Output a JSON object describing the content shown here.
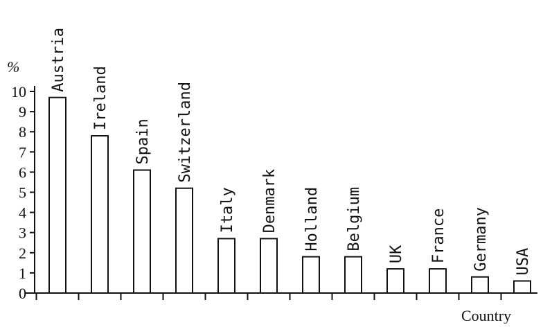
{
  "chart_data": {
    "type": "bar",
    "categories": [
      "Austria",
      "Ireland",
      "Spain",
      "Switzerland",
      "Italy",
      "Denmark",
      "Holland",
      "Belgium",
      "UK",
      "France",
      "Germany",
      "USA"
    ],
    "values": [
      9.7,
      7.8,
      6.1,
      5.2,
      2.7,
      2.7,
      1.8,
      1.8,
      1.2,
      1.2,
      0.8,
      0.6
    ],
    "title": "",
    "xlabel": "Country",
    "ylabel": "%",
    "ylim": [
      0,
      10
    ],
    "yticks": [
      0,
      1,
      2,
      3,
      4,
      5,
      6,
      7,
      8,
      9,
      10
    ],
    "grid": false,
    "legend": "none",
    "colors": {
      "bar_fill": "#ffffff",
      "bar_stroke": "#111111",
      "axis": "#111111",
      "text": "#111111"
    }
  }
}
